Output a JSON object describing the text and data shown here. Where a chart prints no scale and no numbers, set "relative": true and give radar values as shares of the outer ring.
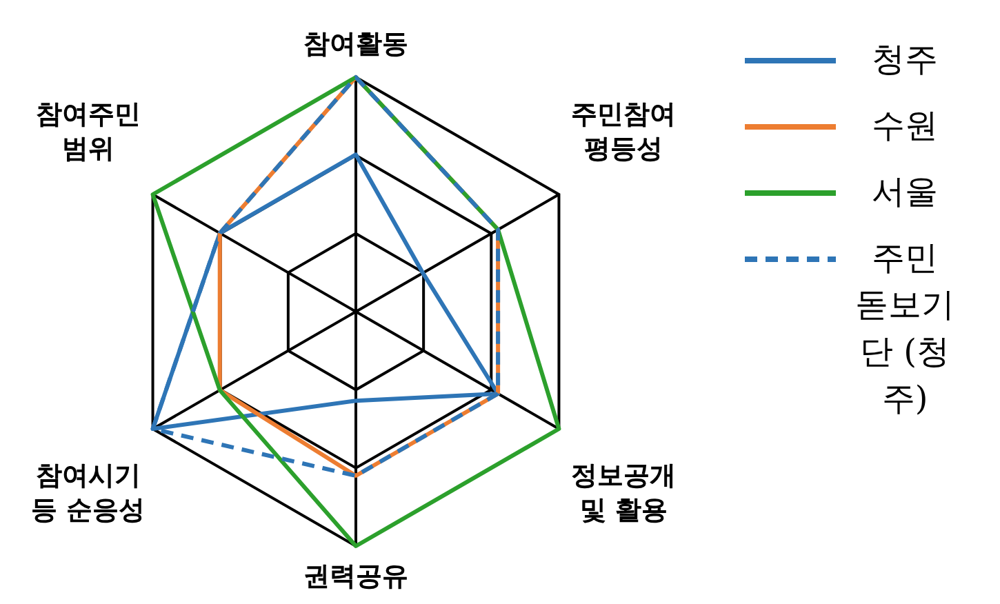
{
  "chart_data": {
    "type": "radar",
    "relative": true,
    "categories": [
      "참여활동",
      "주민참여 평등성",
      "정보공개 및 활용",
      "권력공유",
      "참여시기 등 순응성",
      "참여주민 범위"
    ],
    "series": [
      {
        "name": "청주",
        "color": "#2e75b6",
        "values": [
          0.67,
          0.33,
          0.7,
          0.38,
          1,
          0.67
        ]
      },
      {
        "name": "수원",
        "color": "#ed7d31",
        "values": [
          1,
          0.7,
          0.7,
          0.7,
          0.67,
          0.67
        ]
      },
      {
        "name": "서울",
        "color": "#2ca02c",
        "values": [
          1,
          0.7,
          1,
          1,
          0.67,
          1
        ]
      },
      {
        "name": "주민 돋보기단 (청주)",
        "color": "#2e75b6",
        "line_style": "dashed",
        "values": [
          1,
          0.7,
          0.7,
          0.7,
          1,
          0.67
        ]
      }
    ],
    "grid": true,
    "legend": "right",
    "marker": "none"
  }
}
